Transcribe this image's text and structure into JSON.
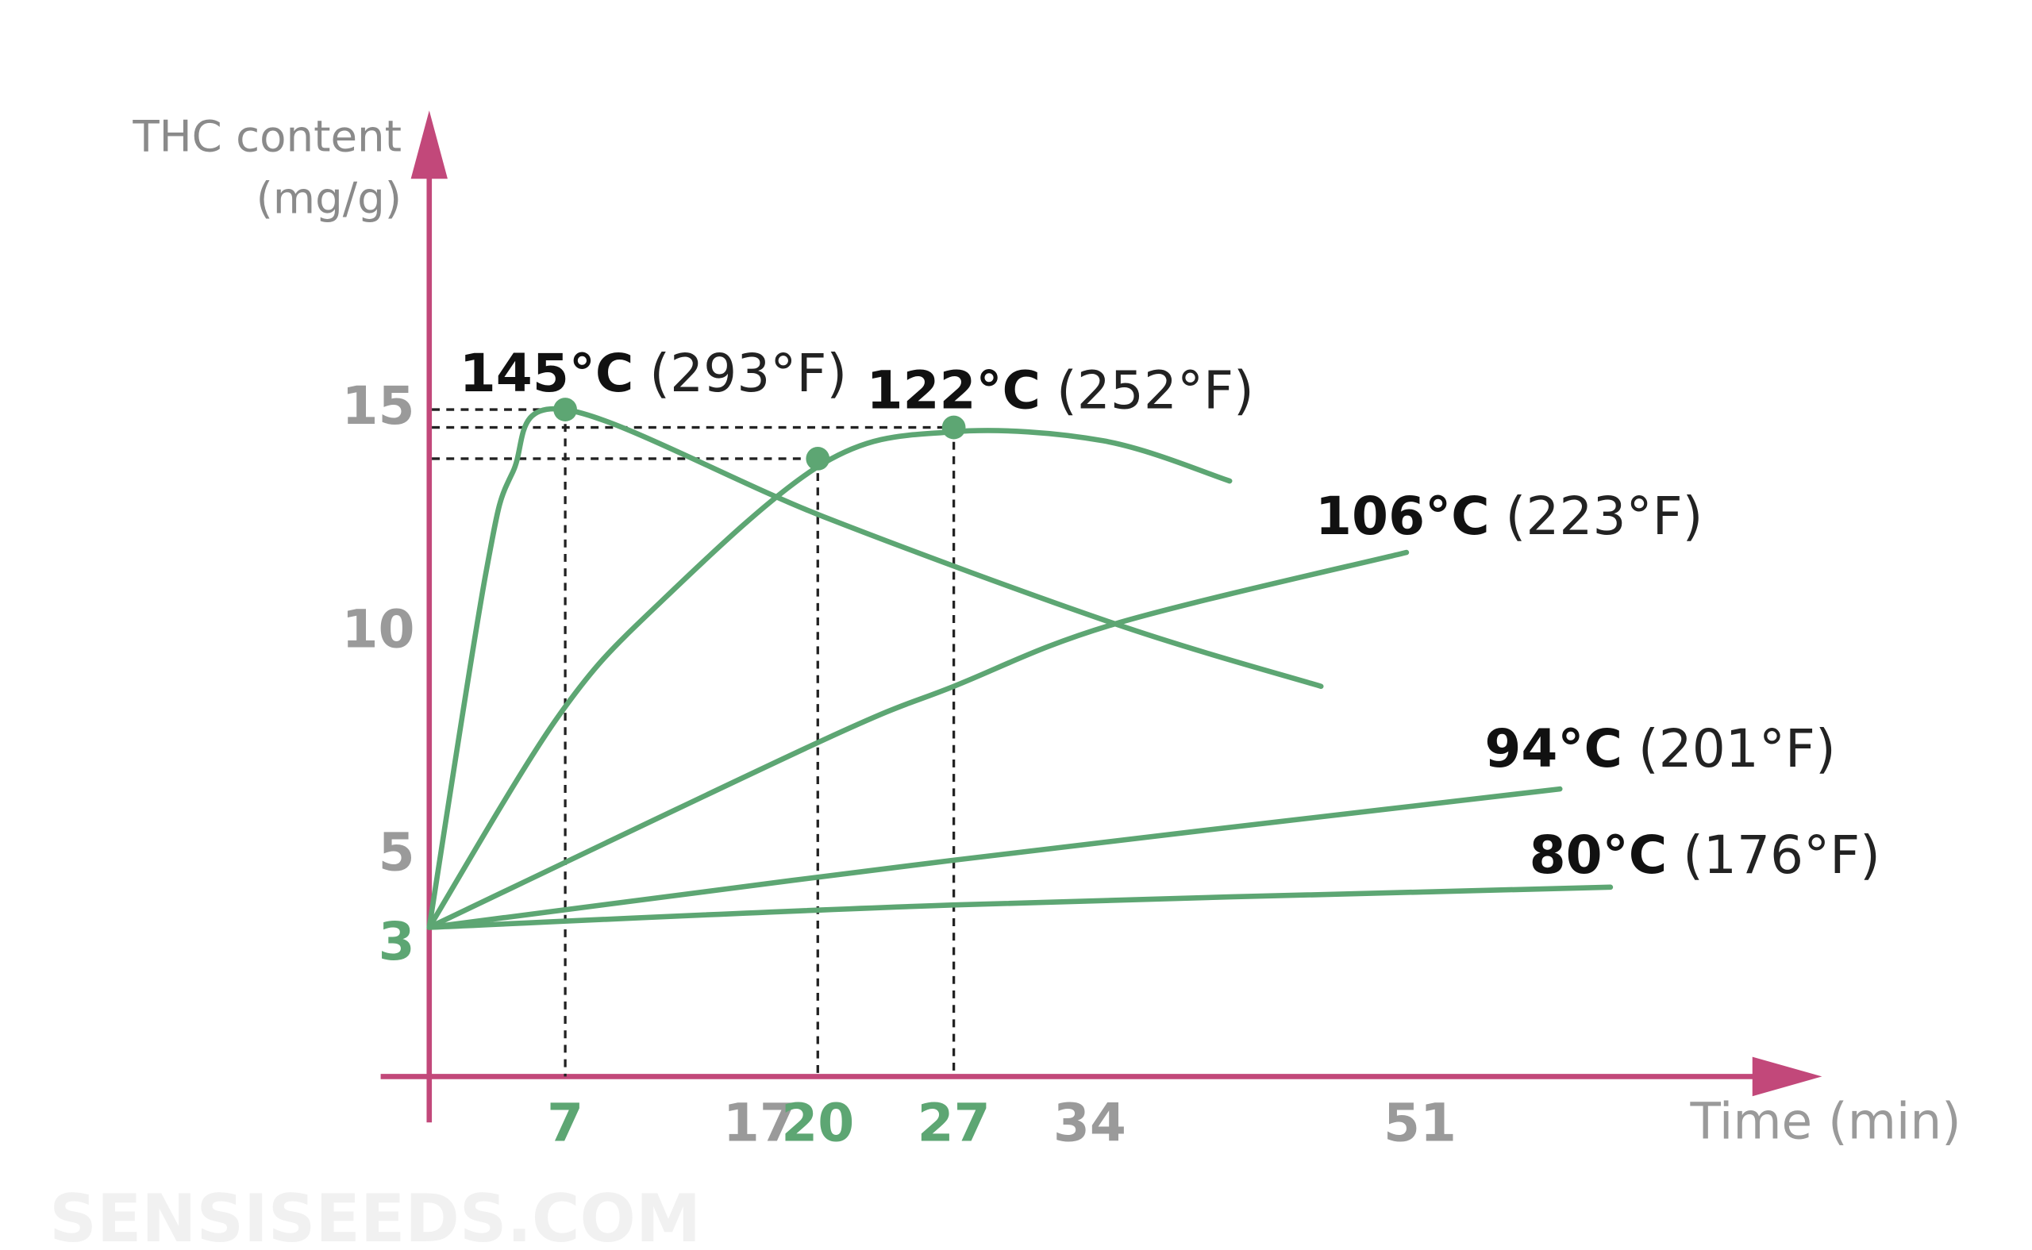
{
  "chart_data": {
    "type": "line",
    "ylabel": [
      "THC content",
      "(mg/g)"
    ],
    "xlabel": "Time (min)",
    "watermark": "SENSISEEDS.COM",
    "xlim": [
      0,
      70
    ],
    "ylim": [
      0,
      21.7
    ],
    "xticks": [
      7,
      17,
      20,
      27,
      34,
      51
    ],
    "xtick_colors": [
      "#5da673",
      "#9a9a9a",
      "#5da673",
      "#5da673",
      "#9a9a9a",
      "#9a9a9a"
    ],
    "yticks": [
      3,
      5,
      10,
      15
    ],
    "ytick_colors": [
      "#5da673",
      "#9a9a9a",
      "#9a9a9a",
      "#9a9a9a"
    ],
    "axis_color": "#c2487a",
    "series": [
      {
        "name": "145°C",
        "fahrenheit": "(293°F)",
        "color": "#5da673",
        "x": [
          0,
          2.9,
          4.3,
          7,
          20.3,
          35.3,
          45.9
        ],
        "values": [
          3.4,
          11.3,
          13.6,
          15,
          12.6,
          10.2,
          8.8
        ]
      },
      {
        "name": "122°C",
        "fahrenheit": "(252°F)",
        "color": "#5da673",
        "x": [
          0,
          6.6,
          11.7,
          20.3,
          26.9,
          34.7,
          41.2
        ],
        "values": [
          3.4,
          8.1,
          10.6,
          13.8,
          14.5,
          14.3,
          13.4
        ]
      },
      {
        "name": "106°C",
        "fahrenheit": "(223°F)",
        "color": "#5da673",
        "x": [
          0,
          20.3,
          27,
          35.3,
          50.3
        ],
        "values": [
          3.4,
          7.6,
          8.8,
          10.2,
          11.8
        ]
      },
      {
        "name": "94°C",
        "fahrenheit": "(201°F)",
        "color": "#5da673",
        "x": [
          0,
          26.9,
          58.2
        ],
        "values": [
          3.4,
          4.9,
          6.5
        ]
      },
      {
        "name": "80°C",
        "fahrenheit": "(176°F)",
        "color": "#5da673",
        "x": [
          0,
          26.9,
          60.8
        ],
        "values": [
          3.4,
          3.9,
          4.3
        ]
      }
    ],
    "markers": {
      "color": "#5da673",
      "x": [
        7,
        20,
        27
      ],
      "values": [
        15,
        13.9,
        14.6
      ]
    }
  }
}
